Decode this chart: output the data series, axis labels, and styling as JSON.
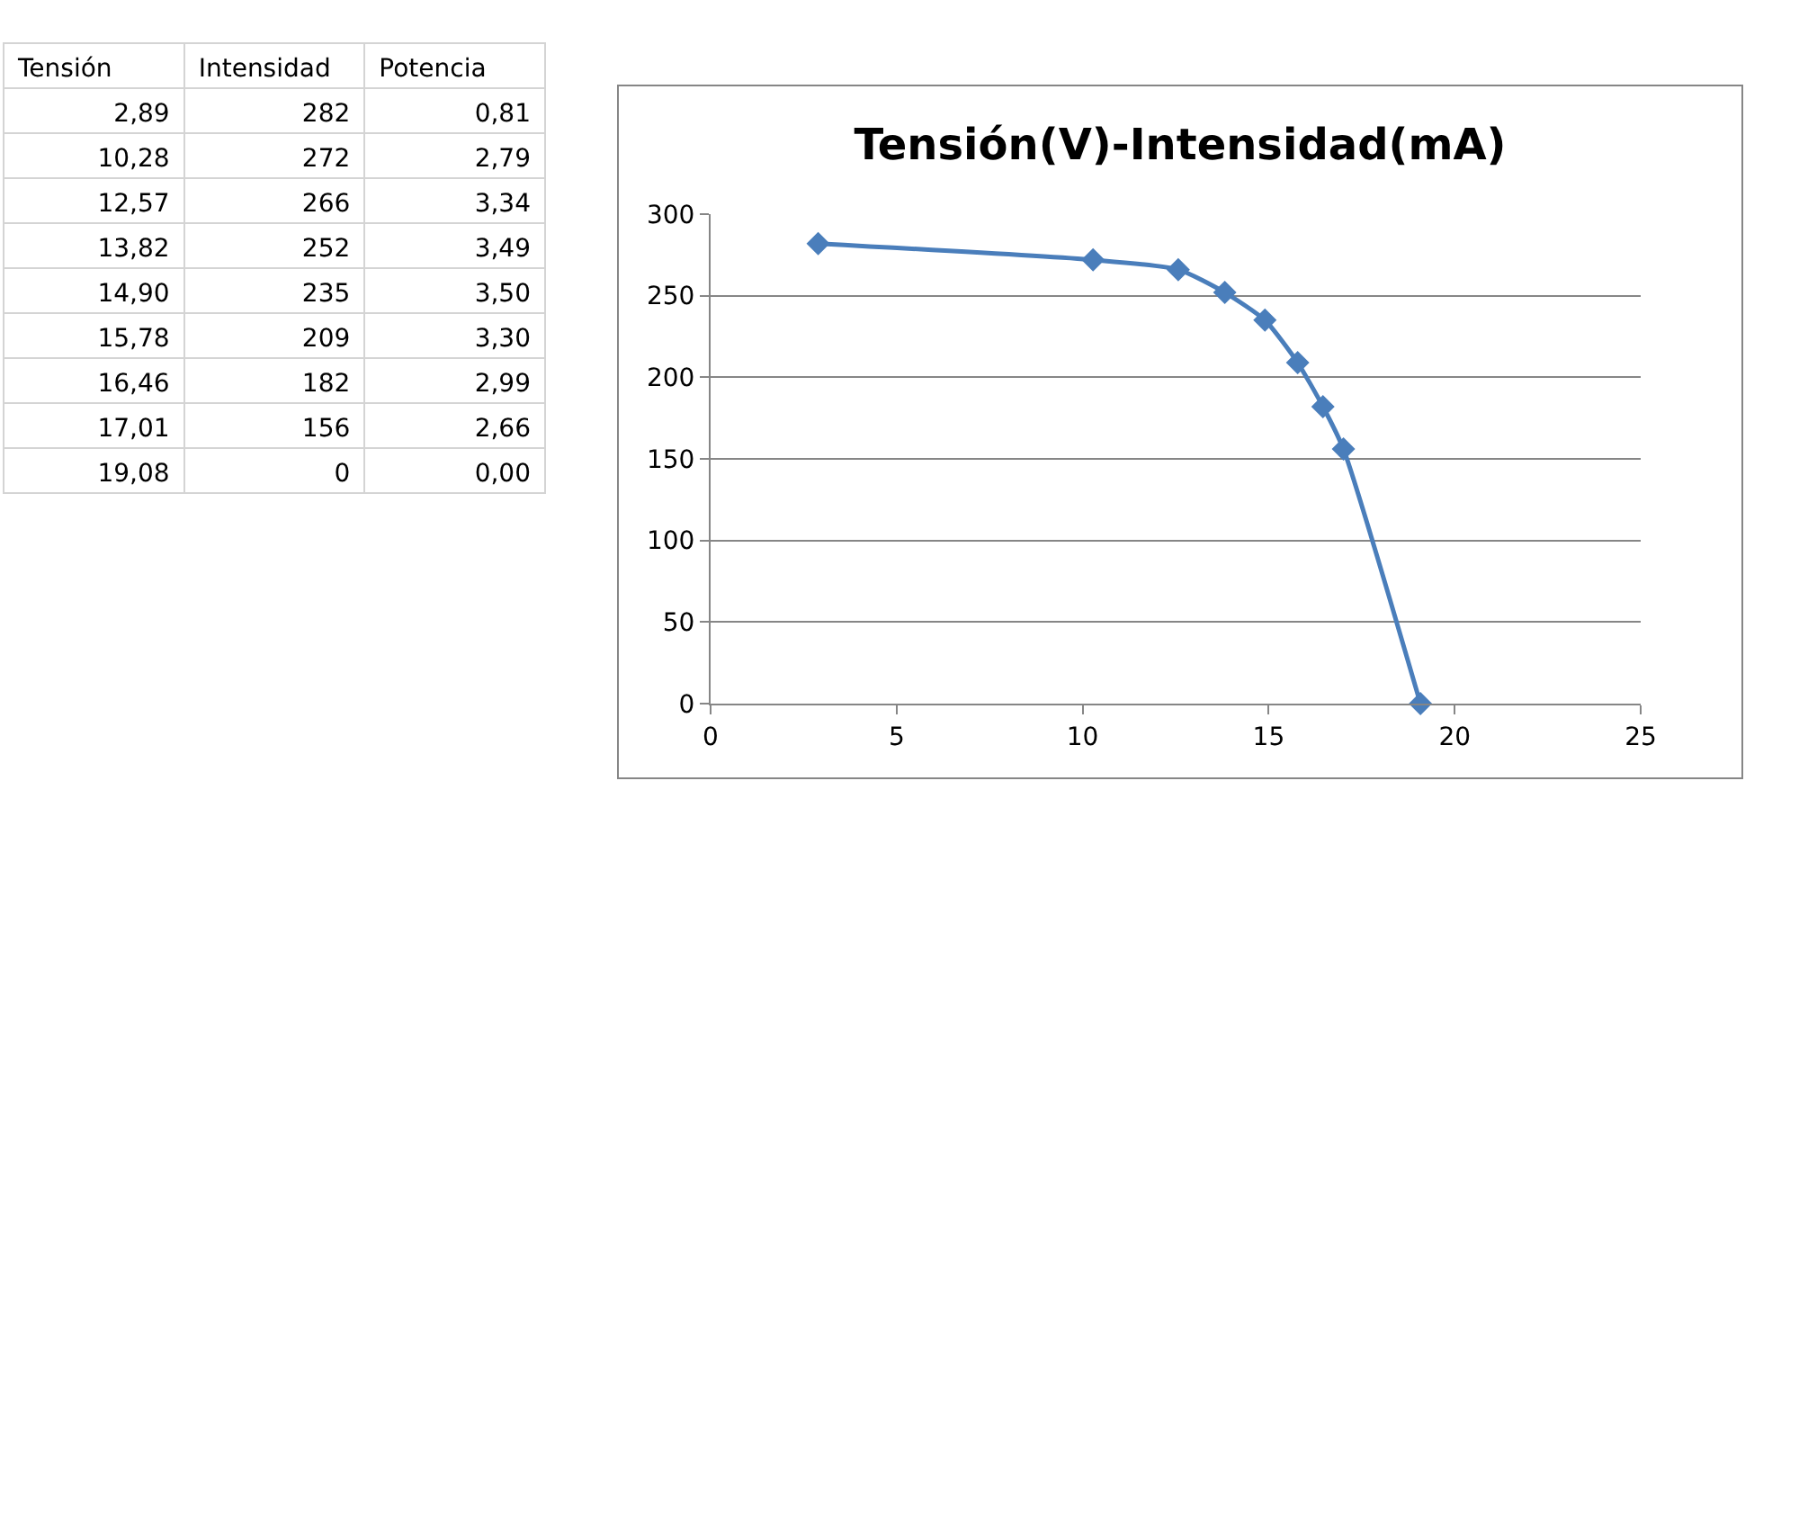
{
  "chart_data": [
    {
      "type": "other",
      "categories": [
        "Tensión",
        "Intensidad",
        "Potencia"
      ],
      "cell_labels": [
        [
          "2,89",
          "282",
          "0,81"
        ],
        [
          "10,28",
          "272",
          "2,79"
        ],
        [
          "12,57",
          "266",
          "3,34"
        ],
        [
          "13,82",
          "252",
          "3,49"
        ],
        [
          "14,90",
          "235",
          "3,50"
        ],
        [
          "15,78",
          "209",
          "3,30"
        ],
        [
          "16,46",
          "182",
          "2,99"
        ],
        [
          "17,01",
          "156",
          "2,66"
        ],
        [
          "19,08",
          "0",
          "0,00"
        ]
      ]
    },
    {
      "type": "line",
      "title": "Tensión(V)-Intensidad(mA)",
      "x": [
        2.89,
        10.28,
        12.57,
        13.82,
        14.9,
        15.78,
        16.46,
        17.01,
        19.08
      ],
      "values": [
        282,
        272,
        266,
        252,
        235,
        209,
        182,
        156,
        0
      ],
      "color": "#4a7ebb",
      "marker": "diamond",
      "grid": "y",
      "legend": false,
      "xlim": [
        0,
        25
      ],
      "xticks": [
        0,
        5,
        10,
        15,
        20,
        25
      ],
      "ylim": [
        0,
        300
      ],
      "yticks": [
        0,
        50,
        100,
        150,
        200,
        250,
        300
      ]
    }
  ]
}
